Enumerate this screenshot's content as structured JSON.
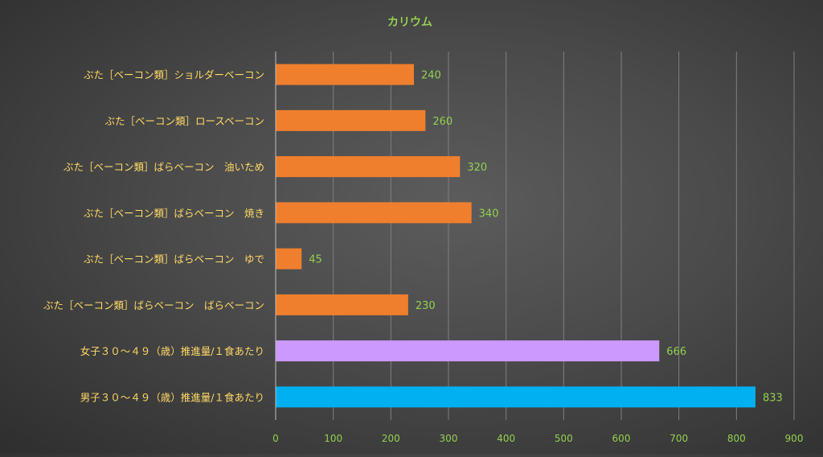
{
  "chart_data": {
    "type": "bar",
    "orientation": "horizontal",
    "title": "カリウム",
    "xlabel": "",
    "ylabel": "",
    "xlim": [
      0,
      900
    ],
    "x_ticks": [
      0,
      100,
      200,
      300,
      400,
      500,
      600,
      700,
      800,
      900
    ],
    "grid": "vertical",
    "legend": "none",
    "categories": [
      "ぶた［ベーコン類］ショルダーベーコン",
      "ぶた［ベーコン類］ロースベーコン",
      "ぶた［ベーコン類］ばらベーコン　油いため",
      "ぶた［ベーコン類］ばらベーコン　焼き",
      "ぶた［ベーコン類］ばらベーコン　ゆで",
      "ぶた［ベーコン類］ばらベーコン　ばらベーコン",
      "女子３０～４９（歳）推進量/１食あたり",
      "男子３０～４９（歳）推進量/１食あたり"
    ],
    "values": [
      240,
      260,
      320,
      340,
      45,
      230,
      666,
      833
    ],
    "bar_colors": [
      "#f07f2d",
      "#f07f2d",
      "#f07f2d",
      "#f07f2d",
      "#f07f2d",
      "#f07f2d",
      "#cc99ff",
      "#00b0f0"
    ],
    "colors": {
      "title": "#92d050",
      "category_label": "#ffd966",
      "tick_label": "#92d050",
      "data_label": "#92d050",
      "gridline": "#7f7f7f",
      "axis_line": "#bfbfbf"
    }
  }
}
